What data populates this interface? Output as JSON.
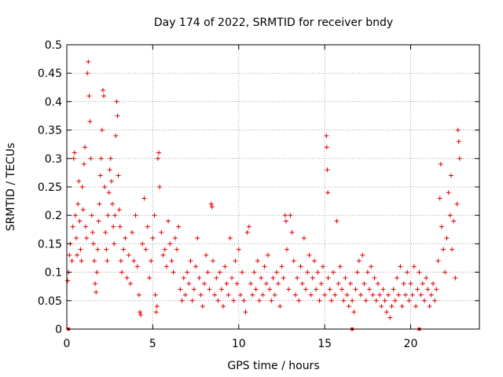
{
  "chart_data": {
    "type": "scatter",
    "title": "Day 174 of 2022, SRMTID for receiver bndy",
    "xlabel": "GPS time / hours",
    "ylabel": "SRMTID / TECUs",
    "xlim": [
      0,
      24
    ],
    "ylim": [
      0,
      0.5
    ],
    "x_ticks": [
      0,
      5,
      10,
      15,
      20
    ],
    "y_ticks": [
      0,
      0.05,
      0.1,
      0.15,
      0.2,
      0.25,
      0.3,
      0.35,
      0.4,
      0.45,
      0.5
    ],
    "x_tick_labels": [
      "0",
      "5",
      "10",
      "15",
      "20"
    ],
    "y_tick_labels": [
      "0",
      "0.05",
      "0.1",
      "0.15",
      "0.2",
      "0.25",
      "0.3",
      "0.35",
      "0.4",
      "0.45",
      "0.5"
    ],
    "grid": true,
    "marker": "+",
    "color": "#e00000",
    "series": [
      {
        "name": "SRMTID",
        "points": [
          [
            0.05,
            0.085
          ],
          [
            0.1,
            0.1
          ],
          [
            0.15,
            0.13
          ],
          [
            0.2,
            0.15
          ],
          [
            0.3,
            0.12
          ],
          [
            0.35,
            0.18
          ],
          [
            0.4,
            0.3
          ],
          [
            0.45,
            0.31
          ],
          [
            0.5,
            0.2
          ],
          [
            0.55,
            0.16
          ],
          [
            0.6,
            0.13
          ],
          [
            0.65,
            0.22
          ],
          [
            0.7,
            0.26
          ],
          [
            0.75,
            0.19
          ],
          [
            0.8,
            0.14
          ],
          [
            0.85,
            0.12
          ],
          [
            0.9,
            0.25
          ],
          [
            0.95,
            0.21
          ],
          [
            1.0,
            0.29
          ],
          [
            1.05,
            0.32
          ],
          [
            1.1,
            0.18
          ],
          [
            1.15,
            0.16
          ],
          [
            1.2,
            0.45
          ],
          [
            1.25,
            0.47
          ],
          [
            1.3,
            0.41
          ],
          [
            1.35,
            0.365
          ],
          [
            1.4,
            0.3
          ],
          [
            1.45,
            0.2
          ],
          [
            1.5,
            0.17
          ],
          [
            1.55,
            0.15
          ],
          [
            1.6,
            0.12
          ],
          [
            1.65,
            0.08
          ],
          [
            1.7,
            0.065
          ],
          [
            1.75,
            0.1
          ],
          [
            1.8,
            0.14
          ],
          [
            1.85,
            0.19
          ],
          [
            1.9,
            0.22
          ],
          [
            1.95,
            0.27
          ],
          [
            2.0,
            0.3
          ],
          [
            2.05,
            0.35
          ],
          [
            2.1,
            0.42
          ],
          [
            2.15,
            0.41
          ],
          [
            2.2,
            0.25
          ],
          [
            2.25,
            0.17
          ],
          [
            2.3,
            0.14
          ],
          [
            2.35,
            0.12
          ],
          [
            2.4,
            0.2
          ],
          [
            2.45,
            0.24
          ],
          [
            2.5,
            0.28
          ],
          [
            2.55,
            0.3
          ],
          [
            2.6,
            0.26
          ],
          [
            2.65,
            0.22
          ],
          [
            2.7,
            0.18
          ],
          [
            2.75,
            0.15
          ],
          [
            2.8,
            0.2
          ],
          [
            2.85,
            0.34
          ],
          [
            2.9,
            0.4
          ],
          [
            2.95,
            0.375
          ],
          [
            3.0,
            0.27
          ],
          [
            3.05,
            0.21
          ],
          [
            3.1,
            0.18
          ],
          [
            3.15,
            0.12
          ],
          [
            3.2,
            0.1
          ],
          [
            3.3,
            0.14
          ],
          [
            3.4,
            0.16
          ],
          [
            3.5,
            0.09
          ],
          [
            3.6,
            0.13
          ],
          [
            3.7,
            0.08
          ],
          [
            3.8,
            0.17
          ],
          [
            3.9,
            0.12
          ],
          [
            4.0,
            0.2
          ],
          [
            4.1,
            0.11
          ],
          [
            4.2,
            0.06
          ],
          [
            4.25,
            0.03
          ],
          [
            4.3,
            0.025
          ],
          [
            4.4,
            0.15
          ],
          [
            4.5,
            0.23
          ],
          [
            4.6,
            0.14
          ],
          [
            4.7,
            0.18
          ],
          [
            4.8,
            0.09
          ],
          [
            4.9,
            0.12
          ],
          [
            5.0,
            0.16
          ],
          [
            5.1,
            0.2
          ],
          [
            5.15,
            0.06
          ],
          [
            5.2,
            0.03
          ],
          [
            5.25,
            0.04
          ],
          [
            5.3,
            0.3
          ],
          [
            5.35,
            0.31
          ],
          [
            5.4,
            0.25
          ],
          [
            5.5,
            0.17
          ],
          [
            5.6,
            0.13
          ],
          [
            5.7,
            0.14
          ],
          [
            5.8,
            0.11
          ],
          [
            5.9,
            0.19
          ],
          [
            6.0,
            0.15
          ],
          [
            6.1,
            0.12
          ],
          [
            6.2,
            0.1
          ],
          [
            6.3,
            0.16
          ],
          [
            6.4,
            0.14
          ],
          [
            6.5,
            0.18
          ],
          [
            6.6,
            0.07
          ],
          [
            6.7,
            0.05
          ],
          [
            6.8,
            0.09
          ],
          [
            6.9,
            0.06
          ],
          [
            7.0,
            0.1
          ],
          [
            7.1,
            0.08
          ],
          [
            7.2,
            0.12
          ],
          [
            7.3,
            0.05
          ],
          [
            7.4,
            0.07
          ],
          [
            7.5,
            0.11
          ],
          [
            7.6,
            0.16
          ],
          [
            7.7,
            0.09
          ],
          [
            7.8,
            0.06
          ],
          [
            7.9,
            0.04
          ],
          [
            8.0,
            0.08
          ],
          [
            8.1,
            0.13
          ],
          [
            8.2,
            0.1
          ],
          [
            8.3,
            0.07
          ],
          [
            8.4,
            0.22
          ],
          [
            8.45,
            0.215
          ],
          [
            8.5,
            0.12
          ],
          [
            8.6,
            0.06
          ],
          [
            8.7,
            0.09
          ],
          [
            8.8,
            0.05
          ],
          [
            8.9,
            0.1
          ],
          [
            9.0,
            0.07
          ],
          [
            9.1,
            0.04
          ],
          [
            9.2,
            0.11
          ],
          [
            9.3,
            0.08
          ],
          [
            9.4,
            0.06
          ],
          [
            9.5,
            0.16
          ],
          [
            9.6,
            0.09
          ],
          [
            9.7,
            0.05
          ],
          [
            9.8,
            0.12
          ],
          [
            9.9,
            0.08
          ],
          [
            10.0,
            0.14
          ],
          [
            10.1,
            0.06
          ],
          [
            10.2,
            0.1
          ],
          [
            10.3,
            0.05
          ],
          [
            10.4,
            0.03
          ],
          [
            10.5,
            0.17
          ],
          [
            10.6,
            0.18
          ],
          [
            10.7,
            0.08
          ],
          [
            10.8,
            0.06
          ],
          [
            10.9,
            0.1
          ],
          [
            11.0,
            0.07
          ],
          [
            11.1,
            0.12
          ],
          [
            11.2,
            0.05
          ],
          [
            11.3,
            0.09
          ],
          [
            11.4,
            0.06
          ],
          [
            11.5,
            0.11
          ],
          [
            11.6,
            0.08
          ],
          [
            11.7,
            0.13
          ],
          [
            11.8,
            0.07
          ],
          [
            11.9,
            0.05
          ],
          [
            12.0,
            0.09
          ],
          [
            12.1,
            0.06
          ],
          [
            12.2,
            0.1
          ],
          [
            12.3,
            0.08
          ],
          [
            12.4,
            0.04
          ],
          [
            12.5,
            0.11
          ],
          [
            12.6,
            0.09
          ],
          [
            12.7,
            0.2
          ],
          [
            12.75,
            0.19
          ],
          [
            12.8,
            0.14
          ],
          [
            12.9,
            0.07
          ],
          [
            13.0,
            0.2
          ],
          [
            13.1,
            0.17
          ],
          [
            13.2,
            0.12
          ],
          [
            13.3,
            0.06
          ],
          [
            13.4,
            0.09
          ],
          [
            13.5,
            0.05
          ],
          [
            13.6,
            0.11
          ],
          [
            13.7,
            0.08
          ],
          [
            13.8,
            0.16
          ],
          [
            13.9,
            0.07
          ],
          [
            14.0,
            0.1
          ],
          [
            14.1,
            0.13
          ],
          [
            14.2,
            0.06
          ],
          [
            14.3,
            0.09
          ],
          [
            14.4,
            0.12
          ],
          [
            14.5,
            0.07
          ],
          [
            14.6,
            0.1
          ],
          [
            14.7,
            0.05
          ],
          [
            14.8,
            0.08
          ],
          [
            14.9,
            0.11
          ],
          [
            15.0,
            0.06
          ],
          [
            15.1,
            0.34
          ],
          [
            15.12,
            0.32
          ],
          [
            15.15,
            0.28
          ],
          [
            15.18,
            0.24
          ],
          [
            15.2,
            0.09
          ],
          [
            15.3,
            0.07
          ],
          [
            15.4,
            0.05
          ],
          [
            15.5,
            0.1
          ],
          [
            15.6,
            0.06
          ],
          [
            15.7,
            0.19
          ],
          [
            15.8,
            0.08
          ],
          [
            15.9,
            0.11
          ],
          [
            16.0,
            0.07
          ],
          [
            16.1,
            0.05
          ],
          [
            16.2,
            0.09
          ],
          [
            16.3,
            0.06
          ],
          [
            16.4,
            0.04
          ],
          [
            16.5,
            0.08
          ],
          [
            16.6,
            0.05
          ],
          [
            16.7,
            0.03
          ],
          [
            16.8,
            0.07
          ],
          [
            16.9,
            0.1
          ],
          [
            17.0,
            0.12
          ],
          [
            17.1,
            0.06
          ],
          [
            17.2,
            0.13
          ],
          [
            17.3,
            0.08
          ],
          [
            17.4,
            0.05
          ],
          [
            17.5,
            0.1
          ],
          [
            17.6,
            0.07
          ],
          [
            17.7,
            0.11
          ],
          [
            17.8,
            0.06
          ],
          [
            17.9,
            0.09
          ],
          [
            18.0,
            0.05
          ],
          [
            18.1,
            0.08
          ],
          [
            18.2,
            0.06
          ],
          [
            18.3,
            0.04
          ],
          [
            18.4,
            0.07
          ],
          [
            18.5,
            0.05
          ],
          [
            18.6,
            0.03
          ],
          [
            18.7,
            0.06
          ],
          [
            18.8,
            0.02
          ],
          [
            18.9,
            0.04
          ],
          [
            19.0,
            0.07
          ],
          [
            19.1,
            0.05
          ],
          [
            19.2,
            0.09
          ],
          [
            19.3,
            0.06
          ],
          [
            19.4,
            0.11
          ],
          [
            19.5,
            0.04
          ],
          [
            19.6,
            0.08
          ],
          [
            19.7,
            0.06
          ],
          [
            19.8,
            0.1
          ],
          [
            19.9,
            0.05
          ],
          [
            20.0,
            0.08
          ],
          [
            20.1,
            0.06
          ],
          [
            20.2,
            0.11
          ],
          [
            20.3,
            0.04
          ],
          [
            20.4,
            0.07
          ],
          [
            20.5,
            0.1
          ],
          [
            20.6,
            0.06
          ],
          [
            20.7,
            0.08
          ],
          [
            20.8,
            0.05
          ],
          [
            20.9,
            0.09
          ],
          [
            21.0,
            0.07
          ],
          [
            21.1,
            0.04
          ],
          [
            21.2,
            0.06
          ],
          [
            21.3,
            0.08
          ],
          [
            21.4,
            0.05
          ],
          [
            21.5,
            0.07
          ],
          [
            21.6,
            0.12
          ],
          [
            21.7,
            0.23
          ],
          [
            21.75,
            0.29
          ],
          [
            21.8,
            0.18
          ],
          [
            21.9,
            0.14
          ],
          [
            22.0,
            0.1
          ],
          [
            22.1,
            0.16
          ],
          [
            22.2,
            0.24
          ],
          [
            22.3,
            0.2
          ],
          [
            22.35,
            0.27
          ],
          [
            22.4,
            0.14
          ],
          [
            22.5,
            0.19
          ],
          [
            22.6,
            0.09
          ],
          [
            22.7,
            0.22
          ],
          [
            22.75,
            0.35
          ],
          [
            22.8,
            0.33
          ],
          [
            22.85,
            0.3
          ]
        ]
      }
    ],
    "baseline_markers": [
      0.1,
      16.6,
      20.5
    ]
  }
}
